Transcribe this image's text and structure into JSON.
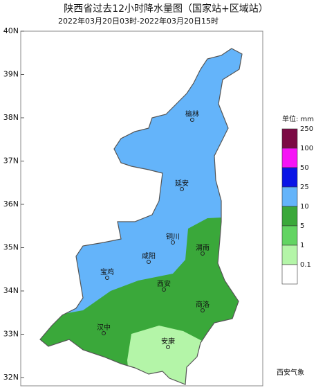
{
  "header": {
    "title": "陕西省过去12小时降水量图（国家站+区域站）",
    "subtitle": "2022年03月20日03时-2022年03月20日15时"
  },
  "axis": {
    "lat_labels": [
      "40N",
      "39N",
      "38N",
      "37N",
      "36N",
      "35N",
      "34N",
      "33N",
      "32N"
    ]
  },
  "cities": [
    "榆林",
    "延安",
    "铜川",
    "渭南",
    "咸阳",
    "宝鸡",
    "西安",
    "商洛",
    "汉中",
    "安康"
  ],
  "legend": {
    "title": "单位: mm",
    "levels": [
      {
        "label": "250",
        "color": "#7b0a44"
      },
      {
        "label": "100",
        "color": "#f614f6"
      },
      {
        "label": "50",
        "color": "#0a14e6"
      },
      {
        "label": "25",
        "color": "#64b4fa"
      },
      {
        "label": "10",
        "color": "#3aa83a"
      },
      {
        "label": "5",
        "color": "#62d462"
      },
      {
        "label": "1",
        "color": "#b4f5a8"
      },
      {
        "label": "0.1",
        "color": "#ffffff"
      }
    ]
  },
  "watermark": "西安气象"
}
